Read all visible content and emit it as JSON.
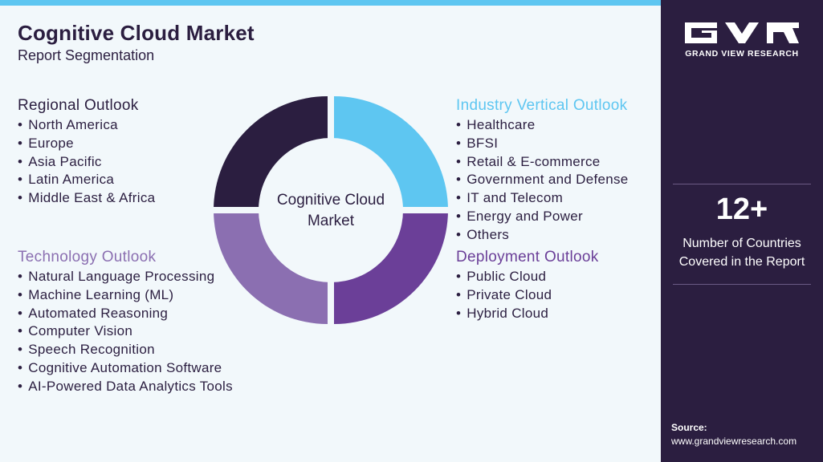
{
  "header": {
    "title": "Cognitive Cloud Market",
    "subtitle": "Report Segmentation"
  },
  "diagram": {
    "center_label_line1": "Cognitive Cloud",
    "center_label_line2": "Market",
    "segment_colors": {
      "top_left": "#2b1e40",
      "top_right": "#5ec6f1",
      "bottom_right": "#6b3f98",
      "bottom_left": "#8b6fb1"
    }
  },
  "sections": {
    "regional": {
      "title": "Regional Outlook",
      "items": [
        "North America",
        "Europe",
        "Asia Pacific",
        "Latin America",
        "Middle East & Africa"
      ]
    },
    "technology": {
      "title": "Technology Outlook",
      "items": [
        "Natural Language Processing",
        "Machine Learning (ML)",
        "Automated Reasoning",
        "Computer Vision",
        "Speech Recognition",
        "Cognitive Automation Software",
        "AI-Powered Data Analytics Tools"
      ]
    },
    "industry": {
      "title": "Industry Vertical Outlook",
      "items": [
        "Healthcare",
        "BFSI",
        "Retail & E-commerce",
        "Government and Defense",
        "IT and Telecom",
        "Energy and Power",
        "Others"
      ]
    },
    "deployment": {
      "title": "Deployment Outlook",
      "items": [
        "Public Cloud",
        "Private Cloud",
        "Hybrid Cloud"
      ]
    }
  },
  "sidebar": {
    "brand": "GRAND VIEW RESEARCH",
    "stat_value": "12+",
    "stat_label_line1": "Number of Countries",
    "stat_label_line2": "Covered in the Report",
    "source_label": "Source:",
    "source_url": "www.grandviewresearch.com"
  },
  "colors": {
    "accent_cyan": "#5ec6f1",
    "dark_purple": "#2b1e40",
    "purple": "#6b3f98",
    "light_purple": "#8b6fb1",
    "background": "#f2f8fb"
  }
}
